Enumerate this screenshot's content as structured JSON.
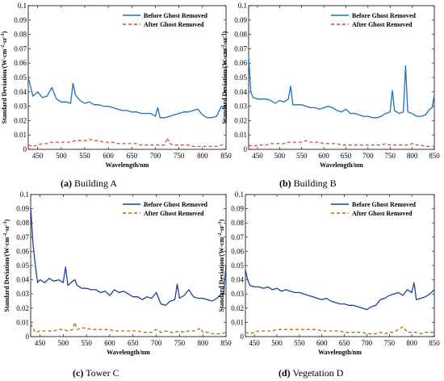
{
  "chart_data": [
    {
      "type": "line",
      "caption_letter": "(a)",
      "caption_text": " Building A",
      "xlabel": "Wavelength/nm",
      "ylabel_main": "Standard Deviation/(W·cm",
      "ylabel_sup1": "-2",
      "ylabel_mid": "·sr",
      "ylabel_sup2": "-1",
      "ylabel_end": ")",
      "xlim": [
        430,
        850
      ],
      "ylim": [
        0,
        0.1
      ],
      "xticks": [
        450,
        500,
        550,
        600,
        650,
        700,
        750,
        800,
        850
      ],
      "yticks": [
        0,
        0.01,
        0.02,
        0.03,
        0.04,
        0.05,
        0.06,
        0.07,
        0.08,
        0.09,
        0.1
      ],
      "ytick_labels": [
        "0",
        "0.01",
        "0.02",
        "0.03",
        "0.04",
        "0.05",
        "0.06",
        "0.07",
        "0.08",
        "0.09",
        "0.1"
      ],
      "legend_position": "top-right",
      "series": [
        {
          "name": "Before Ghost Removed",
          "color": "#1f6fbf",
          "dash": "solid",
          "x": [
            430,
            440,
            450,
            460,
            470,
            480,
            490,
            500,
            510,
            520,
            525,
            530,
            540,
            550,
            560,
            570,
            580,
            590,
            600,
            610,
            620,
            630,
            640,
            650,
            660,
            670,
            680,
            690,
            700,
            705,
            710,
            720,
            730,
            740,
            750,
            760,
            770,
            780,
            790,
            800,
            810,
            820,
            830,
            840,
            850
          ],
          "y": [
            0.05,
            0.037,
            0.04,
            0.036,
            0.037,
            0.043,
            0.035,
            0.033,
            0.033,
            0.032,
            0.046,
            0.038,
            0.034,
            0.032,
            0.033,
            0.031,
            0.031,
            0.03,
            0.03,
            0.029,
            0.028,
            0.027,
            0.027,
            0.026,
            0.026,
            0.025,
            0.025,
            0.025,
            0.023,
            0.029,
            0.022,
            0.022,
            0.023,
            0.024,
            0.025,
            0.026,
            0.026,
            0.027,
            0.028,
            0.024,
            0.022,
            0.022,
            0.023,
            0.03,
            0.029
          ]
        },
        {
          "name": "After Ghost Removed",
          "color": "#e8462a",
          "dash": "dashed",
          "x": [
            430,
            440,
            450,
            460,
            470,
            480,
            490,
            500,
            510,
            520,
            530,
            540,
            550,
            560,
            570,
            580,
            590,
            600,
            610,
            620,
            630,
            640,
            650,
            660,
            670,
            680,
            690,
            700,
            710,
            720,
            725,
            730,
            740,
            750,
            760,
            770,
            780,
            790,
            800,
            810,
            820,
            830,
            840,
            850
          ],
          "y": [
            0.003,
            0.002,
            0.003,
            0.004,
            0.004,
            0.005,
            0.005,
            0.005,
            0.005,
            0.005,
            0.006,
            0.006,
            0.006,
            0.007,
            0.006,
            0.006,
            0.005,
            0.005,
            0.005,
            0.004,
            0.004,
            0.004,
            0.004,
            0.004,
            0.003,
            0.003,
            0.003,
            0.003,
            0.003,
            0.003,
            0.008,
            0.004,
            0.003,
            0.003,
            0.003,
            0.003,
            0.002,
            0.002,
            0.002,
            0.002,
            0.002,
            0.002,
            0.003,
            0.004
          ]
        }
      ]
    },
    {
      "type": "line",
      "caption_letter": "(b)",
      "caption_text": " Building B",
      "xlabel": "Wavelength/nm",
      "ylabel_main": "Standard Deviation/(W·cm",
      "ylabel_sup1": "-2",
      "ylabel_mid": "·sr",
      "ylabel_sup2": "-1",
      "ylabel_end": ")",
      "xlim": [
        430,
        850
      ],
      "ylim": [
        0,
        0.1
      ],
      "xticks": [
        450,
        500,
        550,
        600,
        650,
        700,
        750,
        800,
        850
      ],
      "yticks": [
        0,
        0.01,
        0.02,
        0.03,
        0.04,
        0.05,
        0.06,
        0.07,
        0.08,
        0.09,
        0.1
      ],
      "ytick_labels": [
        "0",
        "0.01",
        "0.02",
        "0.03",
        "0.04",
        "0.05",
        "0.06",
        "0.07",
        "0.08",
        "0.09",
        "0.1"
      ],
      "legend_position": "top-right",
      "series": [
        {
          "name": "Before Ghost Removed",
          "color": "#1f6fbf",
          "dash": "solid",
          "x": [
            430,
            435,
            440,
            450,
            460,
            470,
            480,
            490,
            500,
            510,
            520,
            525,
            530,
            540,
            550,
            560,
            570,
            580,
            590,
            600,
            610,
            620,
            630,
            640,
            650,
            660,
            670,
            680,
            690,
            700,
            710,
            720,
            730,
            740,
            750,
            755,
            760,
            770,
            780,
            785,
            790,
            800,
            810,
            820,
            830,
            840,
            845,
            850
          ],
          "y": [
            0.065,
            0.04,
            0.036,
            0.035,
            0.035,
            0.035,
            0.034,
            0.032,
            0.034,
            0.033,
            0.035,
            0.044,
            0.031,
            0.031,
            0.031,
            0.03,
            0.029,
            0.029,
            0.028,
            0.029,
            0.03,
            0.029,
            0.027,
            0.026,
            0.028,
            0.025,
            0.025,
            0.024,
            0.023,
            0.023,
            0.022,
            0.022,
            0.023,
            0.025,
            0.026,
            0.041,
            0.027,
            0.025,
            0.026,
            0.058,
            0.026,
            0.025,
            0.023,
            0.023,
            0.024,
            0.028,
            0.029,
            0.038
          ]
        },
        {
          "name": "After Ghost Removed",
          "color": "#e8462a",
          "dash": "dashed",
          "x": [
            430,
            440,
            450,
            460,
            470,
            480,
            490,
            500,
            510,
            520,
            530,
            540,
            550,
            560,
            570,
            580,
            590,
            600,
            610,
            620,
            630,
            640,
            650,
            660,
            670,
            680,
            690,
            700,
            710,
            720,
            730,
            740,
            750,
            760,
            770,
            780,
            790,
            800,
            810,
            820,
            830,
            840,
            850
          ],
          "y": [
            0.003,
            0.002,
            0.003,
            0.003,
            0.003,
            0.004,
            0.004,
            0.004,
            0.004,
            0.005,
            0.005,
            0.005,
            0.005,
            0.006,
            0.005,
            0.005,
            0.005,
            0.004,
            0.004,
            0.004,
            0.004,
            0.003,
            0.003,
            0.003,
            0.003,
            0.003,
            0.003,
            0.003,
            0.003,
            0.003,
            0.003,
            0.004,
            0.003,
            0.003,
            0.003,
            0.003,
            0.003,
            0.004,
            0.003,
            0.003,
            0.002,
            0.002,
            0.002
          ]
        }
      ]
    },
    {
      "type": "line",
      "caption_letter": "(c)",
      "caption_text": " Tower C",
      "xlabel": "Wavelength/nm",
      "ylabel_main": "Standard Deviation/(W·cm",
      "ylabel_sup1": "-2",
      "ylabel_mid": "·sr",
      "ylabel_sup2": "-1",
      "ylabel_end": ")",
      "xlim": [
        430,
        850
      ],
      "ylim": [
        0,
        0.1
      ],
      "xticks": [
        450,
        500,
        550,
        600,
        650,
        700,
        750,
        800,
        850
      ],
      "yticks": [
        0,
        0.01,
        0.02,
        0.03,
        0.04,
        0.05,
        0.06,
        0.07,
        0.08,
        0.09,
        0.1
      ],
      "ytick_labels": [
        "0",
        "0.01",
        "0.02",
        "0.03",
        "0.04",
        "0.05",
        "0.06",
        "0.07",
        "0.08",
        "0.09",
        "0.1"
      ],
      "legend_position": "top-right",
      "series": [
        {
          "name": "Before Ghost Removed",
          "color": "#1f3fa0",
          "dash": "solid",
          "x": [
            430,
            435,
            440,
            445,
            450,
            460,
            470,
            480,
            490,
            500,
            505,
            510,
            520,
            525,
            530,
            540,
            550,
            560,
            570,
            580,
            590,
            600,
            610,
            620,
            630,
            640,
            650,
            660,
            670,
            680,
            690,
            700,
            710,
            720,
            730,
            740,
            745,
            750,
            760,
            770,
            780,
            790,
            800,
            810,
            820,
            830,
            840,
            845,
            850
          ],
          "y": [
            0.091,
            0.065,
            0.05,
            0.038,
            0.04,
            0.038,
            0.041,
            0.039,
            0.04,
            0.038,
            0.049,
            0.036,
            0.039,
            0.04,
            0.036,
            0.034,
            0.034,
            0.033,
            0.033,
            0.031,
            0.032,
            0.029,
            0.033,
            0.031,
            0.032,
            0.03,
            0.028,
            0.028,
            0.026,
            0.028,
            0.027,
            0.031,
            0.023,
            0.022,
            0.025,
            0.026,
            0.037,
            0.027,
            0.029,
            0.033,
            0.028,
            0.027,
            0.027,
            0.026,
            0.025,
            0.027,
            0.03,
            0.03,
            0.051
          ]
        },
        {
          "name": "After Ghost Removed",
          "color": "#a07000",
          "dash": "dashed",
          "x": [
            430,
            440,
            450,
            460,
            470,
            480,
            490,
            500,
            510,
            520,
            525,
            530,
            540,
            550,
            560,
            570,
            580,
            590,
            600,
            610,
            620,
            630,
            640,
            650,
            660,
            670,
            680,
            690,
            700,
            710,
            720,
            730,
            740,
            750,
            760,
            770,
            780,
            790,
            795,
            800,
            810,
            820,
            830,
            840,
            850
          ],
          "y": [
            0.009,
            0.003,
            0.004,
            0.004,
            0.004,
            0.004,
            0.005,
            0.005,
            0.004,
            0.005,
            0.01,
            0.005,
            0.006,
            0.006,
            0.005,
            0.005,
            0.005,
            0.005,
            0.005,
            0.004,
            0.004,
            0.004,
            0.004,
            0.004,
            0.004,
            0.003,
            0.003,
            0.003,
            0.005,
            0.003,
            0.004,
            0.003,
            0.003,
            0.004,
            0.003,
            0.004,
            0.004,
            0.005,
            0.006,
            0.003,
            0.003,
            0.002,
            0.002,
            0.002,
            0.003
          ]
        }
      ]
    },
    {
      "type": "line",
      "caption_letter": "(d)",
      "caption_text": " Vegetation D",
      "xlabel": "Wavelength/nm",
      "ylabel_main": "Standard Deviation/(W·cm",
      "ylabel_sup1": "-2",
      "ylabel_mid": "·sr",
      "ylabel_sup2": "-1",
      "ylabel_end": ")",
      "xlim": [
        430,
        850
      ],
      "ylim": [
        0,
        0.1
      ],
      "xticks": [
        450,
        500,
        550,
        600,
        650,
        700,
        750,
        800,
        850
      ],
      "yticks": [
        0,
        0.01,
        0.02,
        0.03,
        0.04,
        0.05,
        0.06,
        0.07,
        0.08,
        0.09,
        0.1
      ],
      "ytick_labels": [
        "0",
        "0.01",
        "0.02",
        "0.03",
        "0.04",
        "0.05",
        "0.06",
        "0.07",
        "0.08",
        "0.09",
        "0.1"
      ],
      "legend_position": "top-right",
      "series": [
        {
          "name": "Before Ghost Removed",
          "color": "#1f3fa0",
          "dash": "solid",
          "x": [
            430,
            435,
            440,
            450,
            460,
            470,
            480,
            490,
            500,
            510,
            520,
            530,
            540,
            550,
            560,
            570,
            580,
            590,
            600,
            610,
            620,
            630,
            640,
            650,
            660,
            670,
            680,
            690,
            700,
            710,
            720,
            730,
            740,
            750,
            760,
            770,
            780,
            790,
            800,
            805,
            810,
            820,
            830,
            840,
            850
          ],
          "y": [
            0.047,
            0.04,
            0.036,
            0.035,
            0.035,
            0.034,
            0.035,
            0.033,
            0.034,
            0.032,
            0.033,
            0.032,
            0.031,
            0.031,
            0.03,
            0.029,
            0.028,
            0.027,
            0.026,
            0.027,
            0.025,
            0.024,
            0.023,
            0.023,
            0.022,
            0.022,
            0.021,
            0.02,
            0.019,
            0.021,
            0.022,
            0.026,
            0.027,
            0.029,
            0.03,
            0.031,
            0.029,
            0.033,
            0.031,
            0.038,
            0.026,
            0.027,
            0.028,
            0.03,
            0.033
          ]
        },
        {
          "name": "After Ghost Removed",
          "color": "#a07000",
          "dash": "dashed",
          "x": [
            430,
            440,
            450,
            460,
            470,
            480,
            490,
            500,
            510,
            520,
            530,
            540,
            550,
            560,
            570,
            580,
            590,
            600,
            610,
            620,
            630,
            640,
            650,
            660,
            670,
            680,
            690,
            700,
            710,
            720,
            730,
            740,
            750,
            760,
            770,
            780,
            790,
            800,
            810,
            820,
            830,
            840,
            850
          ],
          "y": [
            0.003,
            0.002,
            0.003,
            0.004,
            0.004,
            0.004,
            0.004,
            0.005,
            0.005,
            0.005,
            0.005,
            0.005,
            0.005,
            0.005,
            0.005,
            0.005,
            0.005,
            0.004,
            0.004,
            0.004,
            0.004,
            0.004,
            0.003,
            0.003,
            0.003,
            0.003,
            0.003,
            0.002,
            0.002,
            0.002,
            0.003,
            0.002,
            0.003,
            0.003,
            0.005,
            0.007,
            0.003,
            0.003,
            0.003,
            0.002,
            0.003,
            0.003,
            0.003
          ]
        }
      ]
    }
  ]
}
